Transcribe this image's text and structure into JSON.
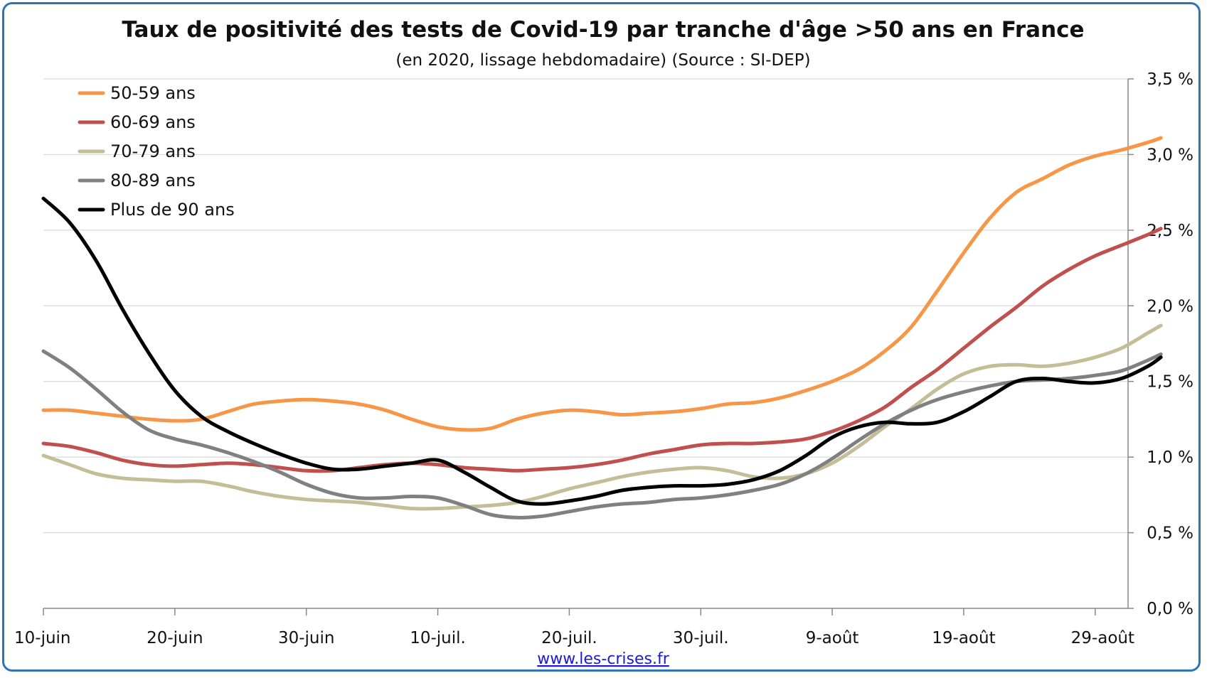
{
  "chart_data": {
    "type": "line",
    "title": "Taux de positivité des tests de Covid-19 par tranche d'âge >50 ans en France",
    "subtitle": "(en 2020, lissage hebdomadaire) (Source : SI-DEP)",
    "x_start": "2020-06-10",
    "x_tick_labels": [
      "10-juin",
      "20-juin",
      "30-juin",
      "10-juil.",
      "20-juil.",
      "30-juil.",
      "9-août",
      "19-août",
      "29-août"
    ],
    "y_tick_labels": [
      "0,0 %",
      "0,5 %",
      "1,0 %",
      "1,5 %",
      "2,0 %",
      "2,5 %",
      "3,0 %",
      "3,5 %"
    ],
    "ylim": [
      0,
      3.5
    ],
    "y_axis_position": "right",
    "grid": true,
    "legend_position": "top-left",
    "series": [
      {
        "name": "50-59 ans",
        "color": "#f79646",
        "points": [
          [
            0,
            1.31
          ],
          [
            2,
            1.31
          ],
          [
            4,
            1.29
          ],
          [
            6,
            1.27
          ],
          [
            8,
            1.25
          ],
          [
            10,
            1.24
          ],
          [
            12,
            1.25
          ],
          [
            14,
            1.3
          ],
          [
            16,
            1.35
          ],
          [
            18,
            1.37
          ],
          [
            20,
            1.38
          ],
          [
            22,
            1.37
          ],
          [
            24,
            1.35
          ],
          [
            26,
            1.31
          ],
          [
            28,
            1.25
          ],
          [
            30,
            1.2
          ],
          [
            32,
            1.18
          ],
          [
            34,
            1.19
          ],
          [
            36,
            1.25
          ],
          [
            38,
            1.29
          ],
          [
            40,
            1.31
          ],
          [
            42,
            1.3
          ],
          [
            44,
            1.28
          ],
          [
            46,
            1.29
          ],
          [
            48,
            1.3
          ],
          [
            50,
            1.32
          ],
          [
            52,
            1.35
          ],
          [
            54,
            1.36
          ],
          [
            56,
            1.39
          ],
          [
            58,
            1.44
          ],
          [
            60,
            1.5
          ],
          [
            62,
            1.58
          ],
          [
            64,
            1.7
          ],
          [
            66,
            1.86
          ],
          [
            68,
            2.1
          ],
          [
            70,
            2.35
          ],
          [
            72,
            2.58
          ],
          [
            74,
            2.75
          ],
          [
            76,
            2.84
          ],
          [
            78,
            2.93
          ],
          [
            80,
            2.99
          ],
          [
            82,
            3.03
          ],
          [
            84,
            3.08
          ],
          [
            85,
            3.11
          ]
        ]
      },
      {
        "name": "60-69 ans",
        "color": "#c0504d",
        "points": [
          [
            0,
            1.09
          ],
          [
            2,
            1.07
          ],
          [
            4,
            1.03
          ],
          [
            6,
            0.98
          ],
          [
            8,
            0.95
          ],
          [
            10,
            0.94
          ],
          [
            12,
            0.95
          ],
          [
            14,
            0.96
          ],
          [
            16,
            0.95
          ],
          [
            18,
            0.93
          ],
          [
            20,
            0.91
          ],
          [
            22,
            0.91
          ],
          [
            24,
            0.93
          ],
          [
            26,
            0.95
          ],
          [
            28,
            0.96
          ],
          [
            30,
            0.95
          ],
          [
            32,
            0.93
          ],
          [
            34,
            0.92
          ],
          [
            36,
            0.91
          ],
          [
            38,
            0.92
          ],
          [
            40,
            0.93
          ],
          [
            42,
            0.95
          ],
          [
            44,
            0.98
          ],
          [
            46,
            1.02
          ],
          [
            48,
            1.05
          ],
          [
            50,
            1.08
          ],
          [
            52,
            1.09
          ],
          [
            54,
            1.09
          ],
          [
            56,
            1.1
          ],
          [
            58,
            1.12
          ],
          [
            60,
            1.17
          ],
          [
            62,
            1.24
          ],
          [
            64,
            1.33
          ],
          [
            66,
            1.46
          ],
          [
            68,
            1.58
          ],
          [
            70,
            1.72
          ],
          [
            72,
            1.86
          ],
          [
            74,
            1.99
          ],
          [
            76,
            2.13
          ],
          [
            78,
            2.24
          ],
          [
            80,
            2.33
          ],
          [
            82,
            2.4
          ],
          [
            84,
            2.47
          ],
          [
            85,
            2.51
          ]
        ]
      },
      {
        "name": "70-79 ans",
        "color": "#c4bd97",
        "points": [
          [
            0,
            1.01
          ],
          [
            2,
            0.95
          ],
          [
            4,
            0.89
          ],
          [
            6,
            0.86
          ],
          [
            8,
            0.85
          ],
          [
            10,
            0.84
          ],
          [
            12,
            0.84
          ],
          [
            14,
            0.81
          ],
          [
            16,
            0.77
          ],
          [
            18,
            0.74
          ],
          [
            20,
            0.72
          ],
          [
            22,
            0.71
          ],
          [
            24,
            0.7
          ],
          [
            26,
            0.68
          ],
          [
            28,
            0.66
          ],
          [
            30,
            0.66
          ],
          [
            32,
            0.67
          ],
          [
            34,
            0.68
          ],
          [
            36,
            0.7
          ],
          [
            38,
            0.74
          ],
          [
            40,
            0.79
          ],
          [
            42,
            0.83
          ],
          [
            44,
            0.87
          ],
          [
            46,
            0.9
          ],
          [
            48,
            0.92
          ],
          [
            50,
            0.93
          ],
          [
            52,
            0.91
          ],
          [
            54,
            0.87
          ],
          [
            56,
            0.86
          ],
          [
            58,
            0.89
          ],
          [
            60,
            0.96
          ],
          [
            62,
            1.07
          ],
          [
            64,
            1.2
          ],
          [
            66,
            1.32
          ],
          [
            68,
            1.45
          ],
          [
            70,
            1.55
          ],
          [
            72,
            1.6
          ],
          [
            74,
            1.61
          ],
          [
            76,
            1.6
          ],
          [
            78,
            1.62
          ],
          [
            80,
            1.66
          ],
          [
            82,
            1.72
          ],
          [
            84,
            1.82
          ],
          [
            85,
            1.87
          ]
        ]
      },
      {
        "name": "80-89 ans",
        "color": "#808080",
        "points": [
          [
            0,
            1.7
          ],
          [
            2,
            1.59
          ],
          [
            4,
            1.45
          ],
          [
            6,
            1.3
          ],
          [
            8,
            1.18
          ],
          [
            10,
            1.12
          ],
          [
            12,
            1.08
          ],
          [
            14,
            1.03
          ],
          [
            16,
            0.97
          ],
          [
            18,
            0.9
          ],
          [
            20,
            0.82
          ],
          [
            22,
            0.76
          ],
          [
            24,
            0.73
          ],
          [
            26,
            0.73
          ],
          [
            28,
            0.74
          ],
          [
            30,
            0.73
          ],
          [
            32,
            0.68
          ],
          [
            34,
            0.62
          ],
          [
            36,
            0.6
          ],
          [
            38,
            0.61
          ],
          [
            40,
            0.64
          ],
          [
            42,
            0.67
          ],
          [
            44,
            0.69
          ],
          [
            46,
            0.7
          ],
          [
            48,
            0.72
          ],
          [
            50,
            0.73
          ],
          [
            52,
            0.75
          ],
          [
            54,
            0.78
          ],
          [
            56,
            0.82
          ],
          [
            58,
            0.89
          ],
          [
            60,
            0.99
          ],
          [
            62,
            1.11
          ],
          [
            64,
            1.22
          ],
          [
            66,
            1.31
          ],
          [
            68,
            1.38
          ],
          [
            70,
            1.43
          ],
          [
            72,
            1.47
          ],
          [
            74,
            1.5
          ],
          [
            76,
            1.51
          ],
          [
            78,
            1.52
          ],
          [
            80,
            1.54
          ],
          [
            82,
            1.57
          ],
          [
            84,
            1.64
          ],
          [
            85,
            1.68
          ]
        ]
      },
      {
        "name": "Plus de 90 ans",
        "color": "#000000",
        "points": [
          [
            0,
            2.71
          ],
          [
            2,
            2.55
          ],
          [
            4,
            2.3
          ],
          [
            6,
            1.98
          ],
          [
            8,
            1.69
          ],
          [
            10,
            1.44
          ],
          [
            12,
            1.27
          ],
          [
            14,
            1.17
          ],
          [
            16,
            1.09
          ],
          [
            18,
            1.02
          ],
          [
            20,
            0.96
          ],
          [
            22,
            0.92
          ],
          [
            24,
            0.92
          ],
          [
            26,
            0.94
          ],
          [
            28,
            0.96
          ],
          [
            30,
            0.98
          ],
          [
            32,
            0.9
          ],
          [
            34,
            0.8
          ],
          [
            36,
            0.71
          ],
          [
            38,
            0.69
          ],
          [
            40,
            0.71
          ],
          [
            42,
            0.74
          ],
          [
            44,
            0.78
          ],
          [
            46,
            0.8
          ],
          [
            48,
            0.81
          ],
          [
            50,
            0.81
          ],
          [
            52,
            0.82
          ],
          [
            54,
            0.85
          ],
          [
            56,
            0.91
          ],
          [
            58,
            1.01
          ],
          [
            60,
            1.13
          ],
          [
            62,
            1.2
          ],
          [
            64,
            1.23
          ],
          [
            66,
            1.22
          ],
          [
            68,
            1.23
          ],
          [
            70,
            1.3
          ],
          [
            72,
            1.4
          ],
          [
            74,
            1.5
          ],
          [
            76,
            1.52
          ],
          [
            78,
            1.5
          ],
          [
            80,
            1.49
          ],
          [
            82,
            1.52
          ],
          [
            84,
            1.6
          ],
          [
            85,
            1.66
          ]
        ]
      }
    ]
  },
  "footer": {
    "source_link": "www.les-crises.fr"
  }
}
